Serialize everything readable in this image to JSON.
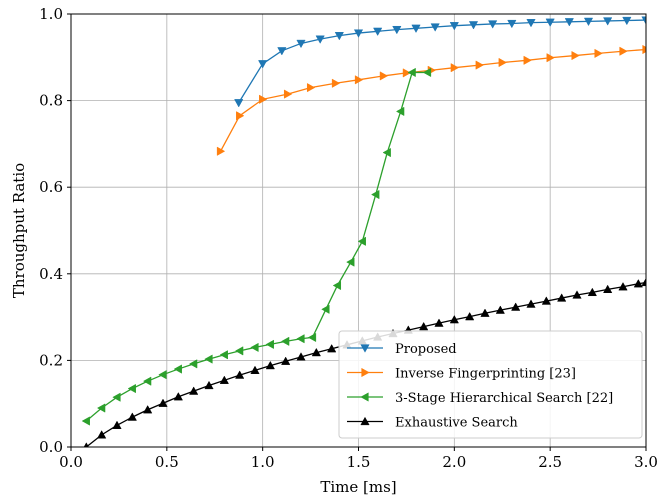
{
  "chart_data": {
    "type": "line",
    "title": "",
    "xlabel": "Time [ms]",
    "ylabel": "Throughput Ratio",
    "xlim": [
      0.0,
      3.0
    ],
    "ylim": [
      0.0,
      1.0
    ],
    "xticks": [
      "0.0",
      "0.5",
      "1.0",
      "1.5",
      "2.0",
      "2.5",
      "3.0"
    ],
    "yticks": [
      "0.0",
      "0.2",
      "0.4",
      "0.6",
      "0.8",
      "1.0"
    ],
    "grid": true,
    "legend_position": "lower-right",
    "series": [
      {
        "name": "Proposed",
        "color": "#1f77b4",
        "marker": "triangle-down",
        "x": [
          0.875,
          1.0,
          1.1,
          1.2,
          1.3,
          1.4,
          1.5,
          1.6,
          1.7,
          1.8,
          1.9,
          2.0,
          2.1,
          2.2,
          2.3,
          2.4,
          2.5,
          2.6,
          2.7,
          2.8,
          2.9,
          3.0
        ],
        "y": [
          0.795,
          0.885,
          0.915,
          0.932,
          0.942,
          0.95,
          0.956,
          0.96,
          0.964,
          0.967,
          0.97,
          0.973,
          0.975,
          0.977,
          0.978,
          0.98,
          0.981,
          0.982,
          0.983,
          0.984,
          0.985,
          0.986
        ]
      },
      {
        "name": "Inverse Fingerprinting [23]",
        "color": "#ff7f0e",
        "marker": "triangle-right",
        "x": [
          0.78,
          0.88,
          1.0,
          1.13,
          1.25,
          1.38,
          1.5,
          1.63,
          1.75,
          1.88,
          2.0,
          2.13,
          2.25,
          2.38,
          2.5,
          2.63,
          2.75,
          2.88,
          3.0
        ],
        "y": [
          0.683,
          0.765,
          0.803,
          0.815,
          0.83,
          0.84,
          0.848,
          0.857,
          0.864,
          0.87,
          0.876,
          0.882,
          0.888,
          0.893,
          0.899,
          0.904,
          0.909,
          0.914,
          0.918
        ]
      },
      {
        "name": "3-Stage Hierarchical Search [22]",
        "color": "#2ca02c",
        "marker": "triangle-left",
        "x": [
          0.08,
          0.16,
          0.24,
          0.32,
          0.4,
          0.48,
          0.56,
          0.64,
          0.72,
          0.8,
          0.88,
          0.96,
          1.04,
          1.12,
          1.2,
          1.26,
          1.33,
          1.39,
          1.46,
          1.52,
          1.59,
          1.65,
          1.72,
          1.78,
          1.86
        ],
        "y": [
          0.06,
          0.09,
          0.115,
          0.135,
          0.152,
          0.167,
          0.18,
          0.192,
          0.203,
          0.213,
          0.222,
          0.23,
          0.237,
          0.244,
          0.25,
          0.253,
          0.318,
          0.373,
          0.427,
          0.475,
          0.583,
          0.68,
          0.775,
          0.865,
          0.865
        ]
      },
      {
        "name": "Exhaustive Search",
        "color": "#000000",
        "marker": "triangle-up",
        "x": [
          0.08,
          0.16,
          0.24,
          0.32,
          0.4,
          0.48,
          0.56,
          0.64,
          0.72,
          0.8,
          0.88,
          0.96,
          1.04,
          1.12,
          1.2,
          1.28,
          1.36,
          1.44,
          1.52,
          1.6,
          1.68,
          1.76,
          1.84,
          1.92,
          2.0,
          2.08,
          2.16,
          2.24,
          2.32,
          2.4,
          2.48,
          2.56,
          2.64,
          2.72,
          2.8,
          2.88,
          2.96,
          3.0
        ],
        "y": [
          0.0,
          0.028,
          0.05,
          0.069,
          0.086,
          0.101,
          0.116,
          0.129,
          0.142,
          0.154,
          0.166,
          0.177,
          0.188,
          0.198,
          0.208,
          0.218,
          0.227,
          0.236,
          0.245,
          0.254,
          0.262,
          0.27,
          0.278,
          0.286,
          0.294,
          0.301,
          0.309,
          0.316,
          0.323,
          0.33,
          0.337,
          0.344,
          0.351,
          0.357,
          0.364,
          0.37,
          0.377,
          0.38
        ]
      }
    ]
  }
}
